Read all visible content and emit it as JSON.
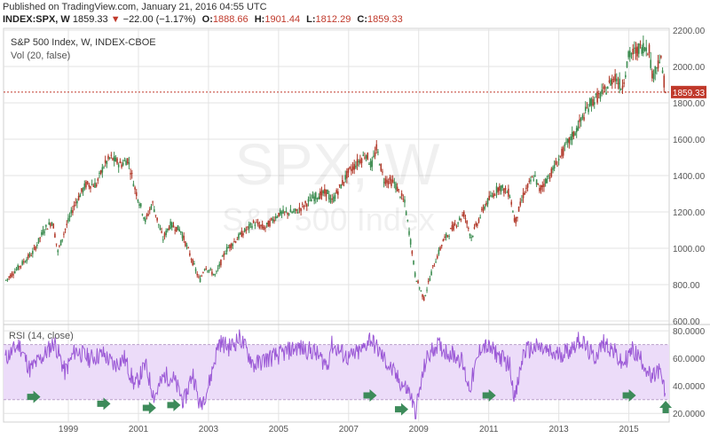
{
  "header": {
    "published": "Published on TradingView.com, January 21, 2016 04:55 UTC",
    "symbol": "INDEX:SPX, W",
    "last": "1859.33",
    "change_arrow": "▼",
    "change": "−22.00 (−1.17%)",
    "o_label": "O:",
    "o_value": "1888.66",
    "h_label": "H:",
    "h_value": "1901.44",
    "l_label": "L:",
    "l_value": "1812.29",
    "c_label": "C:",
    "c_value": "1859.33"
  },
  "legend": {
    "main": "S&P 500 Index, W, INDEX-CBOE",
    "volume": "Vol (20, false)",
    "rsi": "RSI (14, close)"
  },
  "watermark": {
    "symbol": "SPX, W",
    "name": "S&P 500 Index"
  },
  "colors": {
    "up": "#3c8c50",
    "down": "#b23b2c",
    "price_line": "#c0392b",
    "rsi_line": "#9b59d6",
    "rsi_band": "#ecdcf9",
    "arrow": "#3d8b5a",
    "grid": "#e3e3e3",
    "axis_text": "#555555"
  },
  "chart_data": [
    {
      "type": "line",
      "series_style": "candlestick (weekly)",
      "title": "S&P 500 Index, W, INDEX-CBOE",
      "x_ticks": [
        "1999",
        "2001",
        "2003",
        "2005",
        "2007",
        "2009",
        "2011",
        "2013",
        "2015"
      ],
      "y_ticks": [
        "600.00",
        "800.00",
        "1000.00",
        "1200.00",
        "1400.00",
        "1600.00",
        "1800.00",
        "2000.00",
        "2200.00"
      ],
      "ylim": [
        600,
        2200
      ],
      "grid": true,
      "current_price_label": "1859.33",
      "current_price": 1859.33,
      "series": [
        {
          "x": [
            1997.2,
            1997.6,
            1998.0,
            1998.3,
            1998.55,
            1998.7,
            1998.9,
            1999.2,
            1999.5,
            1999.8,
            2000.0,
            2000.2,
            2000.5,
            2000.7,
            2000.9,
            2001.2,
            2001.4,
            2001.7,
            2001.9,
            2002.2,
            2002.5,
            2002.75,
            2002.9,
            2003.2,
            2003.5,
            2003.9,
            2004.3,
            2004.6,
            2005.0,
            2005.5,
            2006.0,
            2006.4,
            2006.5,
            2007.0,
            2007.5,
            2007.65,
            2007.8,
            2008.0,
            2008.3,
            2008.6,
            2008.8,
            2008.9,
            2009.15,
            2009.4,
            2009.7,
            2010.0,
            2010.3,
            2010.5,
            2010.9,
            2011.3,
            2011.6,
            2011.75,
            2012.0,
            2012.3,
            2012.45,
            2012.8,
            2013.2,
            2013.5,
            2013.9,
            2014.3,
            2014.6,
            2014.8,
            2015.0,
            2015.4,
            2015.6,
            2015.65,
            2015.9,
            2016.05
          ],
          "y": [
            820,
            900,
            980,
            1100,
            1150,
            980,
            1100,
            1250,
            1350,
            1350,
            1450,
            1500,
            1460,
            1490,
            1330,
            1150,
            1250,
            1050,
            1130,
            1100,
            950,
            820,
            900,
            850,
            990,
            1070,
            1140,
            1110,
            1190,
            1200,
            1280,
            1310,
            1250,
            1420,
            1520,
            1450,
            1550,
            1380,
            1360,
            1250,
            1000,
            850,
            720,
            890,
            1040,
            1120,
            1190,
            1060,
            1240,
            1340,
            1300,
            1140,
            1300,
            1400,
            1320,
            1420,
            1560,
            1650,
            1800,
            1860,
            1950,
            1880,
            2060,
            2110,
            2100,
            1940,
            2050,
            1860
          ]
        }
      ]
    },
    {
      "type": "line",
      "title": "RSI (14, close)",
      "y_ticks": [
        "20.0000",
        "40.0000",
        "60.0000",
        "80.0000"
      ],
      "ylim": [
        15,
        82
      ],
      "band": [
        30,
        70
      ],
      "series": [
        {
          "x": [
            1997.2,
            1997.6,
            1997.9,
            1998.3,
            1998.6,
            1998.9,
            1999.2,
            1999.6,
            2000.0,
            2000.3,
            2000.6,
            2000.9,
            2001.2,
            2001.45,
            2001.75,
            2002.0,
            2002.3,
            2002.55,
            2002.75,
            2003.0,
            2003.3,
            2003.6,
            2003.9,
            2004.3,
            2004.7,
            2005.0,
            2005.5,
            2006.0,
            2006.4,
            2006.5,
            2007.0,
            2007.4,
            2007.6,
            2008.0,
            2008.4,
            2008.75,
            2008.9,
            2009.2,
            2009.5,
            2009.8,
            2010.2,
            2010.45,
            2010.8,
            2011.2,
            2011.6,
            2011.75,
            2012.0,
            2012.4,
            2012.9,
            2013.3,
            2013.6,
            2014.0,
            2014.3,
            2014.6,
            2014.8,
            2015.1,
            2015.4,
            2015.65,
            2015.85,
            2016.05
          ],
          "y": [
            60,
            70,
            52,
            62,
            72,
            50,
            66,
            60,
            63,
            55,
            60,
            40,
            55,
            32,
            48,
            45,
            28,
            50,
            25,
            40,
            72,
            68,
            75,
            55,
            60,
            62,
            68,
            65,
            55,
            70,
            60,
            66,
            75,
            60,
            45,
            35,
            20,
            58,
            70,
            65,
            60,
            38,
            70,
            64,
            55,
            30,
            65,
            68,
            62,
            66,
            74,
            60,
            72,
            64,
            55,
            66,
            58,
            44,
            52,
            34
          ]
        }
      ]
    }
  ],
  "signals": [
    {
      "x": 1998.0,
      "rsi": 32,
      "dir": "right"
    },
    {
      "x": 2000.0,
      "rsi": 27,
      "dir": "right"
    },
    {
      "x": 2001.3,
      "rsi": 24,
      "dir": "right"
    },
    {
      "x": 2002.0,
      "rsi": 26,
      "dir": "right"
    },
    {
      "x": 2007.6,
      "rsi": 33,
      "dir": "right"
    },
    {
      "x": 2008.5,
      "rsi": 23,
      "dir": "right"
    },
    {
      "x": 2011.0,
      "rsi": 33,
      "dir": "right"
    },
    {
      "x": 2015.0,
      "rsi": 33,
      "dir": "right"
    },
    {
      "x": 2016.05,
      "rsi": 24,
      "dir": "up"
    }
  ]
}
